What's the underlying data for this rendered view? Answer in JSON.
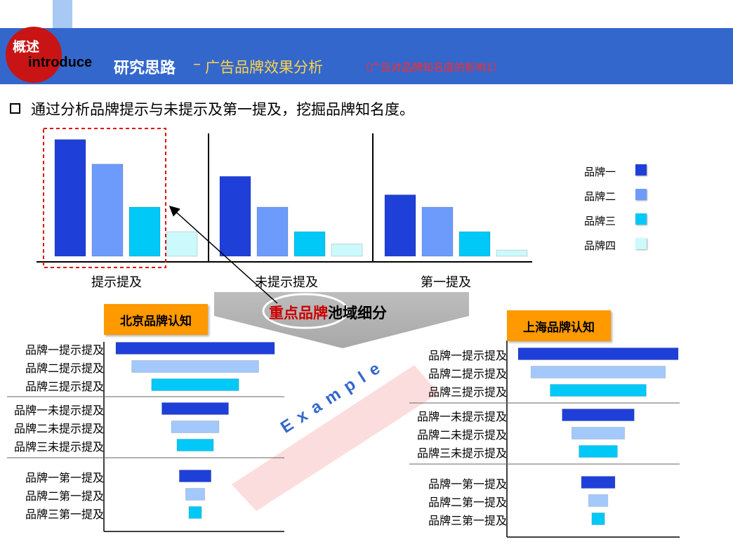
{
  "header": {
    "logo_text": "概述",
    "introduce": "introduce",
    "title_main": "研究思路",
    "title_sep": "–",
    "title_sub": "广告品牌效果分析",
    "title_note": "（广告对品牌知名度的影响1）"
  },
  "bullet": {
    "text": "通过分析品牌提示与未提示及第一提及，挖掘品牌知名度。"
  },
  "colors": {
    "brand1": "#1f3fd9",
    "brand2": "#6d9bfc",
    "brand3": "#00c8f7",
    "brand4": "#ccf9fb",
    "funnel2": "#a3c8fc",
    "header_bg": "#3367cc",
    "badge": "#ff9900"
  },
  "funnel_banner": {
    "highlight": "重点品牌",
    "rest": "池域细分"
  },
  "watermark": "E x a m p l e",
  "chart_data": [
    {
      "type": "bar",
      "categories": [
        "提示提及",
        "未提示提及",
        "第一提及"
      ],
      "series": [
        {
          "name": "品牌一",
          "values": [
            95,
            65,
            50
          ]
        },
        {
          "name": "品牌二",
          "values": [
            75,
            40,
            40
          ]
        },
        {
          "name": "品牌三",
          "values": [
            40,
            20,
            20
          ]
        },
        {
          "name": "品牌四",
          "values": [
            20,
            10,
            5
          ]
        }
      ],
      "ylim": [
        0,
        100
      ],
      "legend": "right"
    },
    {
      "type": "bar",
      "orientation": "horizontal",
      "title": "北京品牌认知",
      "categories": [
        "品牌一提示提及",
        "品牌二提示提及",
        "品牌三提示提及",
        "品牌一未提示提及",
        "品牌二未提示提及",
        "品牌三未提示提及",
        "品牌一第一提及",
        "品牌二第一提及",
        "品牌三第一提及"
      ],
      "values": [
        100,
        80,
        55,
        42,
        30,
        23,
        20,
        12,
        8
      ]
    },
    {
      "type": "bar",
      "orientation": "horizontal",
      "title": "上海品牌认知",
      "categories": [
        "品牌一提示提及",
        "品牌二提示提及",
        "品牌三提示提及",
        "品牌一未提示提及",
        "品牌二未提示提及",
        "品牌三未提示提及",
        "品牌一第一提及",
        "品牌二第一提及",
        "品牌三第一提及"
      ],
      "values": [
        100,
        84,
        60,
        45,
        33,
        24,
        21,
        12,
        8
      ]
    }
  ]
}
